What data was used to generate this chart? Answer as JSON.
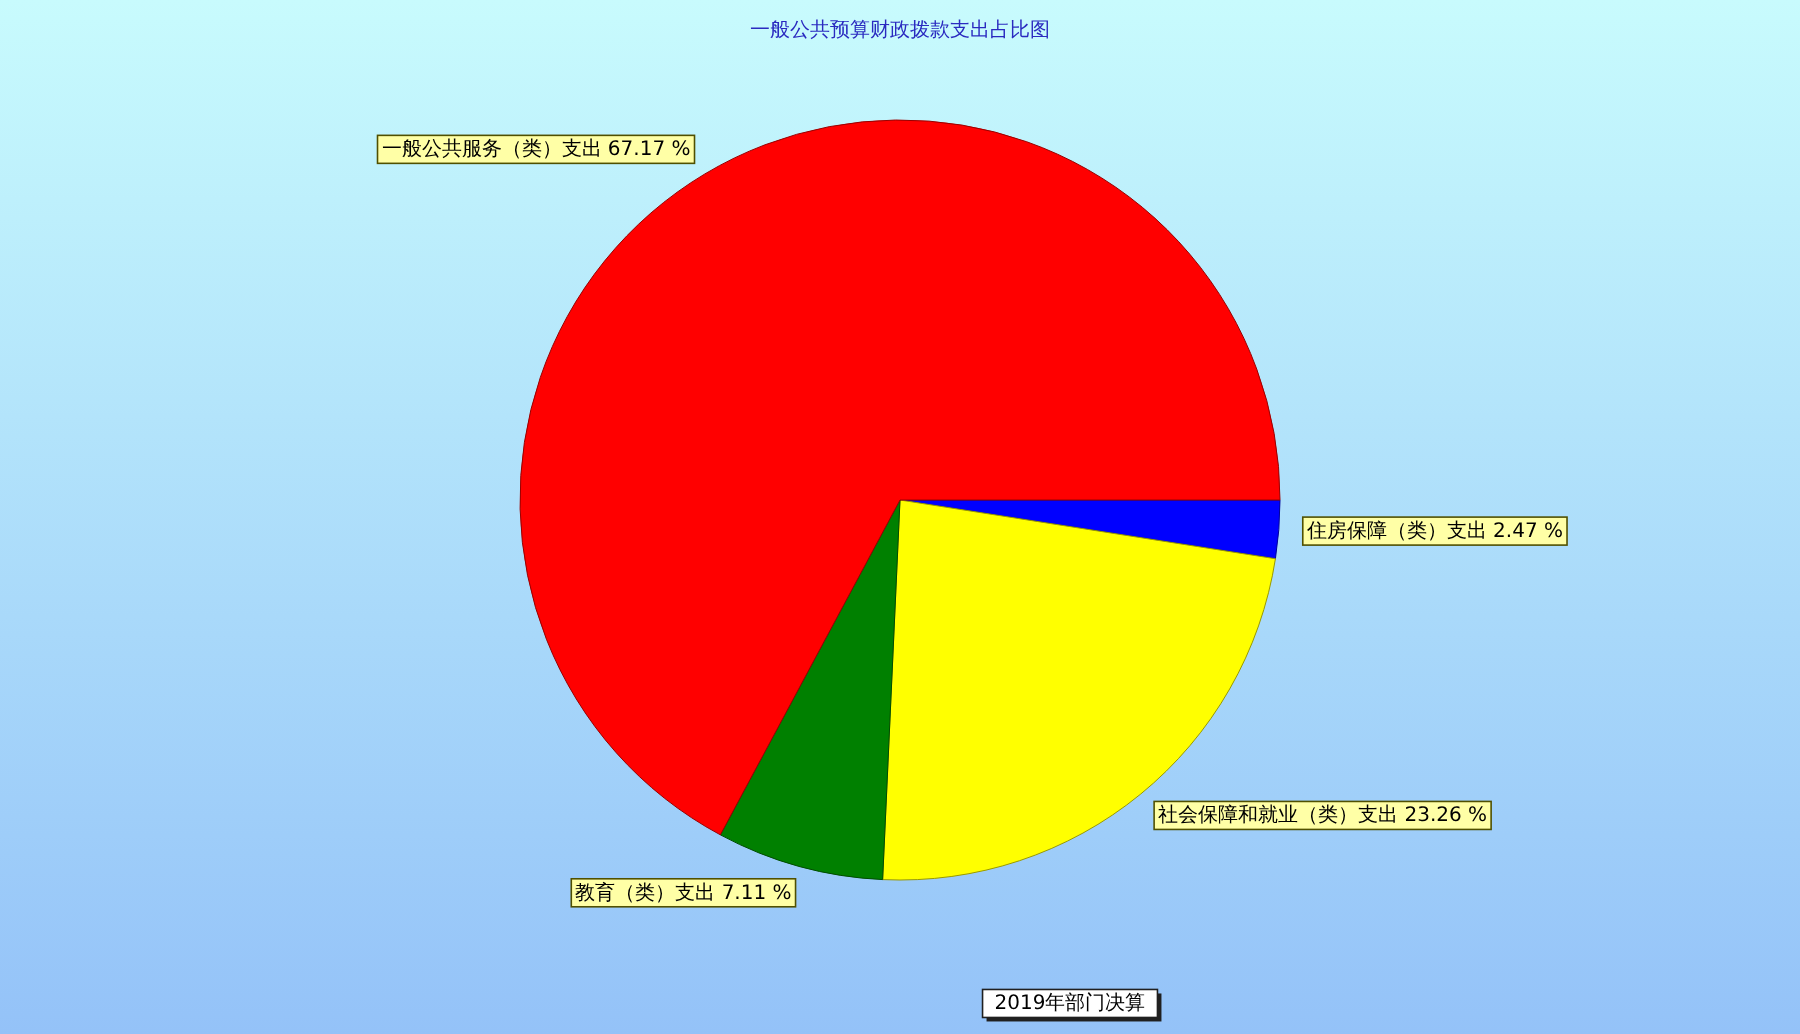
{
  "chart_data": {
    "type": "pie",
    "title": "一般公共预算财政拨款支出占比图",
    "categories": [
      "住房保障（类）支出",
      "社会保障和就业（类）支出",
      "教育（类）支出",
      "一般公共服务（类）支出"
    ],
    "values": [
      2.47,
      23.26,
      7.11,
      67.17
    ],
    "colors": [
      "#0000ff",
      "#ffff00",
      "#008000",
      "#ff0000"
    ],
    "value_labels": [
      "2.47 %",
      "23.26 %",
      "7.11 %",
      "67.17 %"
    ],
    "annotations": [
      "2019年部门决算"
    ]
  }
}
